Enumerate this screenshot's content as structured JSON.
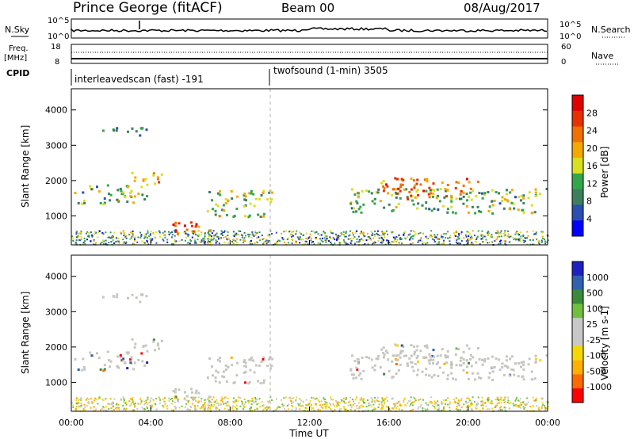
{
  "header": {
    "station": "Prince George (fitACF)",
    "beam": "Beam 00",
    "date": "08/Aug/2017"
  },
  "noise_panel": {
    "left_label": "N.Sky",
    "right_label": "N.Search",
    "ticks_left": [
      "10^5",
      "10^0"
    ],
    "ticks_right": [
      "10^5",
      "10^0"
    ]
  },
  "freq_panel": {
    "left_label_1": "Freq.",
    "left_label_2": "[MHz]",
    "ticks_left": [
      "18",
      "8"
    ],
    "ticks_right": [
      "60",
      "0"
    ],
    "right_label": "Nave"
  },
  "cpid": {
    "label": "CPID",
    "segments": [
      {
        "text": "interleavedscan (fast) -191",
        "start_hour": 0
      },
      {
        "text": "twofsound (1-min) 3505",
        "start_hour": 10
      }
    ]
  },
  "colors": {
    "power_scale": [
      "#0000ff",
      "#2a4fb0",
      "#3d7f5c",
      "#34a64a",
      "#d8e020",
      "#f5a800",
      "#f07000",
      "#e83000",
      "#e00000"
    ],
    "velocity_scale": [
      "#ff0000",
      "#ff6a00",
      "#ffb000",
      "#f5d800",
      "#c8c8c8",
      "#c8c8c8",
      "#70c040",
      "#3a8a3a",
      "#3060b0",
      "#2020c0"
    ],
    "velocity_ground": "#c6c6c0"
  },
  "chart_data": [
    {
      "type": "heatmap",
      "title": "Prince George (fitACF) Beam 00 08/Aug/2017",
      "xlabel": "Time UT",
      "ylabel": "Slant Range [km]",
      "x_range_hours": [
        0,
        24
      ],
      "x_ticks": [
        "00:00",
        "04:00",
        "08:00",
        "12:00",
        "16:00",
        "20:00",
        "00:00"
      ],
      "y_range_km": [
        180,
        4600
      ],
      "y_ticks": [
        1000,
        2000,
        3000,
        4000
      ],
      "colorbar_label": "Power [dB]",
      "colorbar_ticks": [
        "4",
        "8",
        "12",
        "16",
        "20",
        "24",
        "28"
      ],
      "color_range": [
        0,
        30
      ],
      "blobs": [
        {
          "t0": 0.1,
          "t1": 3.8,
          "r0": 1350,
          "r1": 1900,
          "level": 12
        },
        {
          "t0": 3.0,
          "t1": 4.8,
          "r0": 1900,
          "r1": 2250,
          "level": 20
        },
        {
          "t0": 1.5,
          "t1": 3.8,
          "r0": 3300,
          "r1": 3550,
          "level": 8
        },
        {
          "t0": 5.0,
          "t1": 7.0,
          "r0": 500,
          "r1": 900,
          "level": 24
        },
        {
          "t0": 6.8,
          "t1": 10.2,
          "r0": 1000,
          "r1": 1750,
          "level": 14
        },
        {
          "t0": 14.0,
          "t1": 23.9,
          "r0": 1100,
          "r1": 1800,
          "level": 12
        },
        {
          "t0": 15.5,
          "t1": 20.5,
          "r0": 1500,
          "r1": 2100,
          "level": 22
        }
      ]
    },
    {
      "type": "heatmap",
      "xlabel": "Time UT",
      "ylabel": "Slant Range [km]",
      "x_range_hours": [
        0,
        24
      ],
      "x_ticks": [
        "00:00",
        "04:00",
        "08:00",
        "12:00",
        "16:00",
        "20:00",
        "00:00"
      ],
      "y_range_km": [
        180,
        4600
      ],
      "y_ticks": [
        1000,
        2000,
        3000,
        4000
      ],
      "colorbar_label": "Velocity [m s-1]",
      "colorbar_ticks": [
        "1000",
        "500",
        "100",
        "25",
        "-25",
        "-100",
        "-500",
        "-1000"
      ],
      "color_range": [
        -1000,
        1000
      ]
    }
  ]
}
